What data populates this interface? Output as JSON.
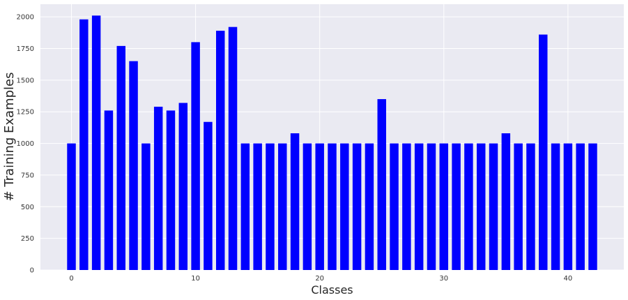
{
  "chart_data": {
    "type": "bar",
    "xlabel": "Classes",
    "ylabel": "# Training Examples",
    "xlim": [
      -2.5,
      44.5
    ],
    "ylim": [
      0,
      2100
    ],
    "xticks": [
      0,
      10,
      20,
      30,
      40
    ],
    "yticks": [
      0,
      250,
      500,
      750,
      1000,
      1250,
      1500,
      1750,
      2000
    ],
    "grid": true,
    "background": "#eaeaf2",
    "bar_color": "#0000ff",
    "categories": [
      0,
      1,
      2,
      3,
      4,
      5,
      6,
      7,
      8,
      9,
      10,
      11,
      12,
      13,
      14,
      15,
      16,
      17,
      18,
      19,
      20,
      21,
      22,
      23,
      24,
      25,
      26,
      27,
      28,
      29,
      30,
      31,
      32,
      33,
      34,
      35,
      36,
      37,
      38,
      39,
      40,
      41,
      42
    ],
    "values": [
      1000,
      1980,
      2010,
      1260,
      1770,
      1650,
      1000,
      1290,
      1260,
      1320,
      1800,
      1170,
      1890,
      1920,
      1000,
      1000,
      1000,
      1000,
      1080,
      1000,
      1000,
      1000,
      1000,
      1000,
      1000,
      1350,
      1000,
      1000,
      1000,
      1000,
      1000,
      1000,
      1000,
      1000,
      1000,
      1080,
      1000,
      1000,
      1860,
      1000,
      1000,
      1000,
      1000
    ]
  }
}
